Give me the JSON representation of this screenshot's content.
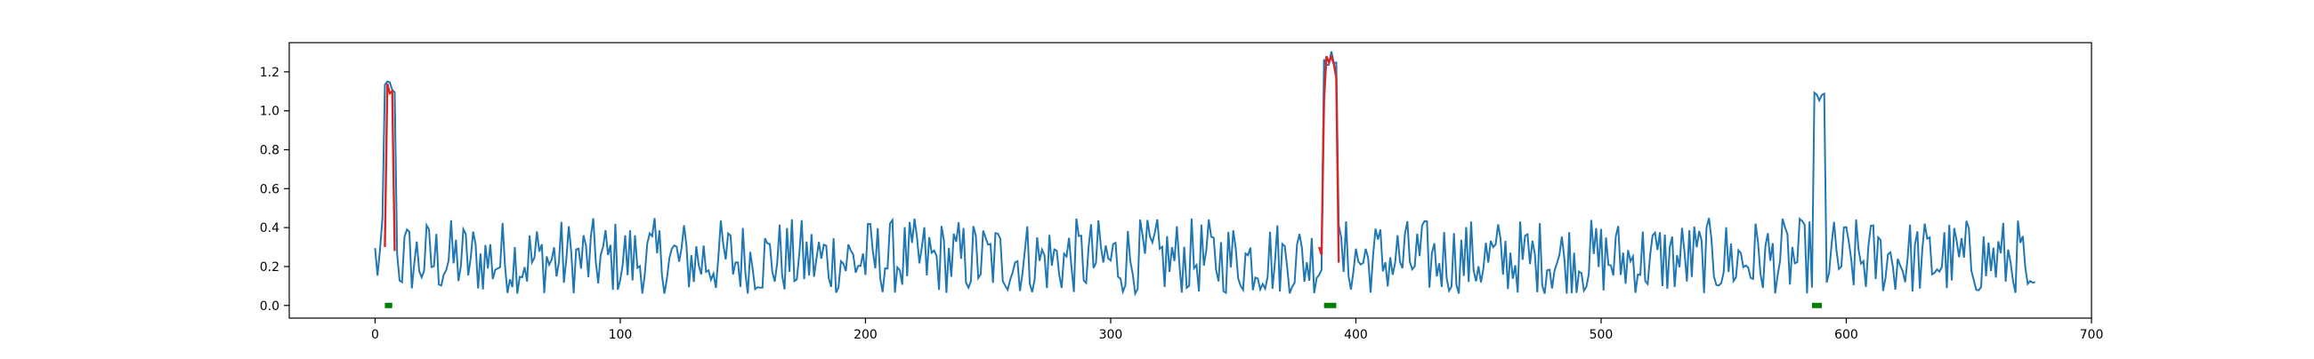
{
  "chart_data": {
    "type": "line",
    "title": "",
    "xlabel": "",
    "ylabel": "",
    "xlim": [
      -35,
      700
    ],
    "ylim": [
      -0.065,
      1.35
    ],
    "x_ticks": [
      0,
      100,
      200,
      300,
      400,
      500,
      600,
      700
    ],
    "y_ticks": [
      0.0,
      0.2,
      0.4,
      0.6,
      0.8,
      1.0,
      1.2
    ],
    "grid": false,
    "legend": "none",
    "n_points": 678,
    "base_signal": {
      "color": "#1f77b4",
      "noise_low": 0.06,
      "noise_high": 0.45,
      "end_value": 0.11,
      "peaks": [
        {
          "start": 4,
          "end": 8,
          "level": 1.12
        },
        {
          "start": 387,
          "end": 392,
          "level": 1.27
        },
        {
          "start": 587,
          "end": 591,
          "level": 1.07
        }
      ]
    },
    "highlight_series": {
      "color": "#d62728",
      "segments": [
        {
          "x": [
            4,
            5,
            6,
            7,
            8
          ],
          "y": [
            0.3,
            1.14,
            1.09,
            1.1,
            0.28
          ]
        },
        {
          "x": [
            385,
            386,
            387,
            388,
            389,
            390,
            391,
            392,
            393
          ],
          "y": [
            0.3,
            0.26,
            1.05,
            1.28,
            1.25,
            1.28,
            1.24,
            1.17,
            0.22
          ]
        }
      ]
    },
    "markers": {
      "color": "#008000",
      "y": 0.0,
      "segments": [
        {
          "x_start": 4,
          "x_end": 7
        },
        {
          "x_start": 387,
          "x_end": 392
        },
        {
          "x_start": 586,
          "x_end": 590
        }
      ]
    }
  }
}
